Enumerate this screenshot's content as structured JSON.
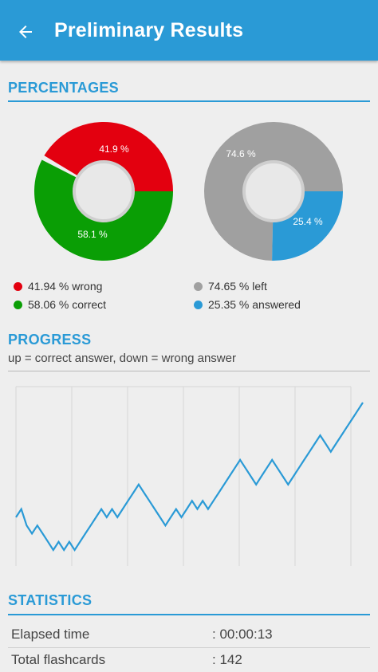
{
  "header": {
    "title": "Preliminary Results",
    "back_icon": "arrow-left-icon"
  },
  "colors": {
    "accent": "#2a9ad6",
    "wrong": "#e3000f",
    "correct": "#0a9e05",
    "left": "#a0a0a0",
    "answered": "#2a9ad6"
  },
  "percentages": {
    "title": "PERCENTAGES",
    "pie1": {
      "wrong_label": "41.9 %",
      "correct_label": "58.1 %",
      "wrong": 41.94,
      "correct": 58.06
    },
    "pie2": {
      "left_label": "74.6 %",
      "answered_label": "25.4 %",
      "left": 74.65,
      "answered": 25.35
    },
    "legend": {
      "wrong": "41.94 % wrong",
      "correct": "58.06 % correct",
      "left": "74.65 % left",
      "answered": "25.35 % answered"
    }
  },
  "progress": {
    "title": "PROGRESS",
    "subtitle": "up = correct answer, down = wrong answer"
  },
  "chart_data": {
    "type": "line",
    "series": [
      {
        "values": [
          0,
          1,
          -1,
          -2,
          -1,
          -2,
          -3,
          -4,
          -3,
          -4,
          -3,
          -4,
          -3,
          -2,
          -1,
          0,
          1,
          0,
          1,
          0,
          1,
          2,
          3,
          4,
          3,
          2,
          1,
          0,
          -1,
          0,
          1,
          0,
          1,
          2,
          1,
          2,
          1,
          2,
          3,
          4,
          5,
          6,
          7,
          6,
          5,
          4,
          5,
          6,
          7,
          6,
          5,
          4,
          5,
          6,
          7,
          8,
          9,
          10,
          9,
          8,
          9,
          10,
          11,
          12,
          13,
          14
        ]
      }
    ],
    "grid": "vertical",
    "xlabel": "",
    "ylabel": ""
  },
  "statistics": {
    "title": "STATISTICS",
    "rows": [
      {
        "label": "Elapsed time",
        "value": ": 00:00:13"
      },
      {
        "label": "Total flashcards",
        "value": ": 142"
      }
    ]
  }
}
